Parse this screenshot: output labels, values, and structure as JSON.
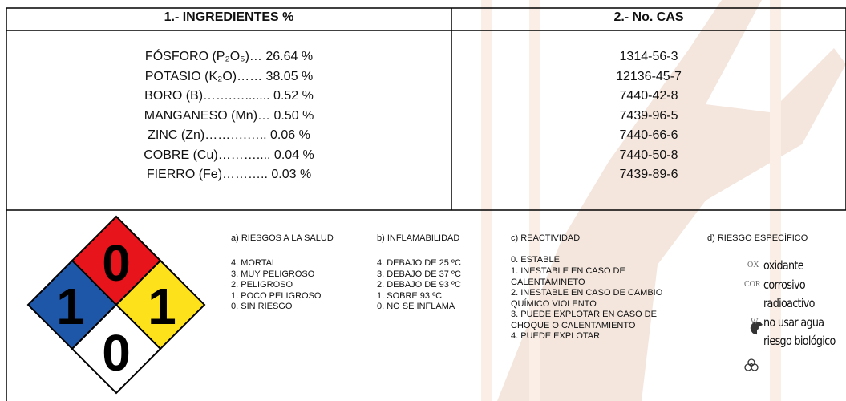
{
  "header": {
    "ingredients": "1.- INGREDIENTES %",
    "cas": "2.- No. CAS"
  },
  "table": {
    "rows": [
      [
        "FÓSFORO (P₂O₅)… 26.64 %",
        "1314-56-3"
      ],
      [
        "POTASIO (K₂O)…… 38.05 %",
        "12136-45-7"
      ],
      [
        "BORO (B)…….…....... 0.52 %",
        "7440-42-8"
      ],
      [
        "MANGANESO (Mn)… 0.50 %",
        "7439-96-5"
      ],
      [
        "ZINC (Zn)……….….. 0.06 %",
        "7440-66-6"
      ],
      [
        "COBRE (Cu)……….... 0.04 %",
        "7440-50-8"
      ],
      [
        "FIERRO (Fe)……….. 0.03 %",
        "7439-89-6"
      ]
    ]
  },
  "diamond": {
    "flammability": 0,
    "health": 1,
    "reactivity": 1,
    "special": 0
  },
  "legend": {
    "health": {
      "title": "a) RIESGOS A LA SALUD",
      "items": [
        "4. MORTAL",
        "3. MUY PELIGROSO",
        "2. PELIGROSO",
        "1. POCO PELIGROSO",
        "0. SIN RIESGO"
      ]
    },
    "flammability": {
      "title": "b) INFLAMABILIDAD",
      "items": [
        "4. DEBAJO DE 25 ºC",
        "3. DEBAJO DE 37 ºC",
        "2. DEBAJO DE 93 ºC",
        "1. SOBRE 93 ºC",
        "0. NO SE INFLAMA"
      ]
    },
    "reactivity": {
      "title": "c) REACTIVIDAD",
      "items": [
        "0. ESTABLE",
        "1. INESTABLE EN CASO DE CALENTAMINETO",
        "2. INESTABLE EN CASO DE CAMBIO QUÍMICO VIOLENTO",
        "3. PUEDE EXPLOTAR EN CASO DE CHOQUE O CALENTAMIENTO",
        "4. PUEDE EXPLOTAR"
      ]
    },
    "specific": {
      "title": "d) RIESGO ESPECÍFICO",
      "items": [
        {
          "code": "OX",
          "label": "oxidante"
        },
        {
          "code": "COR",
          "label": "corrosivo"
        },
        {
          "label": "radioactivo"
        },
        {
          "code": "W",
          "label": "no usar agua"
        },
        {
          "label": "riesgo biológico"
        }
      ]
    }
  }
}
